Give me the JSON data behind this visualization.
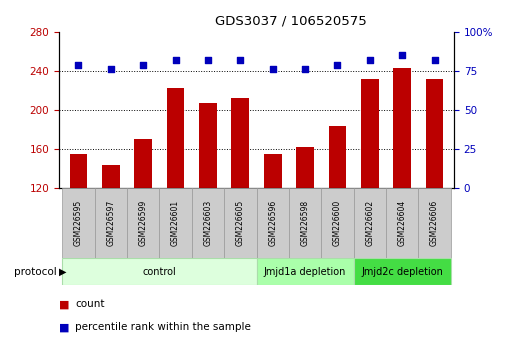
{
  "title": "GDS3037 / 106520575",
  "categories": [
    "GSM226595",
    "GSM226597",
    "GSM226599",
    "GSM226601",
    "GSM226603",
    "GSM226605",
    "GSM226596",
    "GSM226598",
    "GSM226600",
    "GSM226602",
    "GSM226604",
    "GSM226606"
  ],
  "bar_values": [
    155,
    143,
    170,
    222,
    207,
    212,
    155,
    162,
    183,
    232,
    243,
    232
  ],
  "scatter_values": [
    79,
    76,
    79,
    82,
    82,
    82,
    76,
    76,
    79,
    82,
    85,
    82
  ],
  "bar_color": "#bb0000",
  "scatter_color": "#0000bb",
  "ylim_left": [
    120,
    280
  ],
  "ylim_right": [
    0,
    100
  ],
  "yticks_left": [
    120,
    160,
    200,
    240,
    280
  ],
  "yticks_right": [
    0,
    25,
    50,
    75,
    100
  ],
  "grid_values": [
    160,
    200,
    240
  ],
  "groups": [
    {
      "label": "control",
      "start": 0,
      "end": 6,
      "facecolor": "#ddffdd",
      "edgecolor": "#aaddaa"
    },
    {
      "label": "Jmjd1a depletion",
      "start": 6,
      "end": 9,
      "facecolor": "#aaffaa",
      "edgecolor": "#aaddaa"
    },
    {
      "label": "Jmjd2c depletion",
      "start": 9,
      "end": 12,
      "facecolor": "#44dd44",
      "edgecolor": "#aaddaa"
    }
  ],
  "legend_count_label": "count",
  "legend_percentile_label": "percentile rank within the sample",
  "protocol_label": "protocol",
  "left_tick_color": "#bb0000",
  "right_tick_color": "#0000bb",
  "cat_box_facecolor": "#cccccc",
  "cat_box_edgecolor": "#999999"
}
